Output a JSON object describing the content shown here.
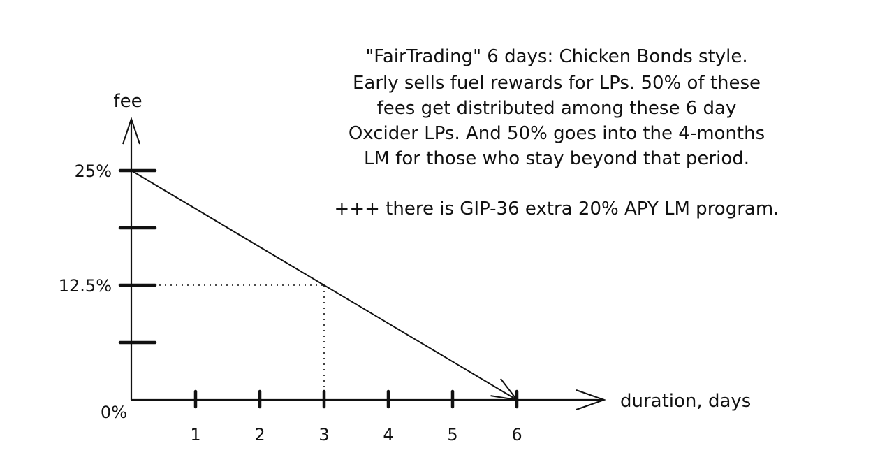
{
  "chart_data": {
    "type": "line",
    "title": "",
    "xlabel": "duration, days",
    "ylabel": "fee",
    "xlim": [
      0,
      6.5
    ],
    "ylim": [
      0,
      25
    ],
    "x_ticks": [
      1,
      2,
      3,
      4,
      5,
      6
    ],
    "x_tick_labels": [
      "1",
      "2",
      "3",
      "4",
      "5",
      "6"
    ],
    "y_ticks": [
      25,
      18.75,
      12.5,
      6.25
    ],
    "y_tick_labels": [
      {
        "value": 25,
        "label": "25%"
      },
      {
        "value": 12.5,
        "label": "12.5%"
      },
      {
        "value": 0,
        "label": "0%"
      }
    ],
    "series": [
      {
        "x": [
          0,
          6
        ],
        "y": [
          25,
          0
        ]
      }
    ],
    "reference_point": {
      "x": 3,
      "y": 12.5
    },
    "grid": false,
    "annotation": {
      "lines": [
        "\"FairTrading\" 6 days: Chicken Bonds style.",
        "Early sells fuel rewards for LPs. 50% of these",
        "fees get distributed among these 6 day",
        "Oxcider LPs. And 50% goes into the 4-months",
        "LM for those who stay beyond that period."
      ],
      "extra": "+++ there is GIP-36 extra 20% APY LM program."
    }
  }
}
